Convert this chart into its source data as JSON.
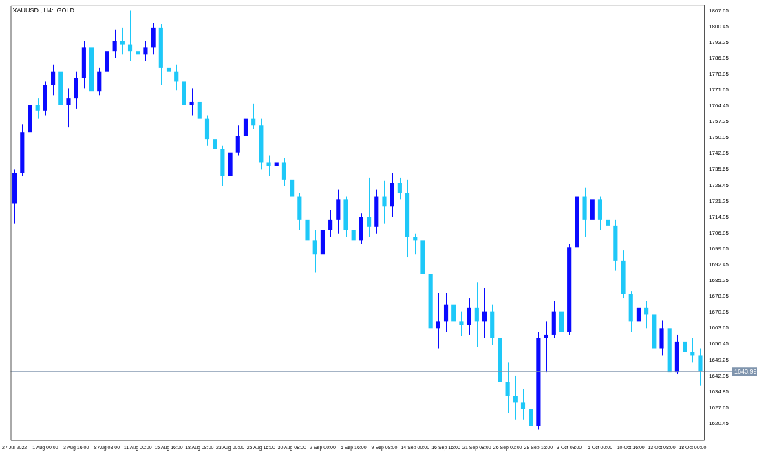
{
  "chart_data": {
    "type": "candlestick",
    "title": "XAUUSD., H4:  GOLD",
    "categories": [
      "27 Jul 2022",
      null,
      null,
      null,
      "1 Aug 00:00",
      null,
      null,
      null,
      "3 Aug 16:00",
      null,
      null,
      null,
      "8 Aug 08:00",
      null,
      null,
      null,
      "11 Aug 00:00",
      null,
      null,
      null,
      "15 Aug 16:00",
      null,
      null,
      null,
      "18 Aug 08:00",
      null,
      null,
      null,
      "23 Aug 00:00",
      null,
      null,
      null,
      "25 Aug 16:00",
      null,
      null,
      null,
      "30 Aug 08:00",
      null,
      null,
      null,
      "2 Sep 00:00",
      null,
      null,
      null,
      "6 Sep 16:00",
      null,
      null,
      null,
      "9 Sep 08:00",
      null,
      null,
      null,
      "14 Sep 00:00",
      null,
      null,
      null,
      "16 Sep 16:00",
      null,
      null,
      null,
      "21 Sep 08:00",
      null,
      null,
      null,
      "26 Sep 00:00",
      null,
      null,
      null,
      "28 Sep 16:00",
      null,
      null,
      null,
      "3 Oct 08:00",
      null,
      null,
      null,
      "6 Oct 00:00",
      null,
      null,
      null,
      "10 Oct 16:00",
      null,
      null,
      null,
      "13 Oct 08:00",
      null,
      null,
      null,
      "18 Oct 00:00",
      null
    ],
    "ohlc": [
      [
        1720.3,
        1735.6,
        1711.2,
        1734.1
      ],
      [
        1734.1,
        1756.2,
        1732.6,
        1752.5
      ],
      [
        1752.5,
        1767.2,
        1751.0,
        1764.8
      ],
      [
        1764.8,
        1767.8,
        1758.6,
        1762.3
      ],
      [
        1762.3,
        1775.5,
        1760.2,
        1774.0
      ],
      [
        1774.0,
        1783.2,
        1769.3,
        1780.1
      ],
      [
        1780.1,
        1787.7,
        1760.2,
        1764.8
      ],
      [
        1764.8,
        1772.4,
        1754.7,
        1767.8
      ],
      [
        1767.8,
        1780.1,
        1763.2,
        1777.0
      ],
      [
        1777.0,
        1793.9,
        1772.4,
        1790.8
      ],
      [
        1790.8,
        1793.0,
        1764.8,
        1770.9
      ],
      [
        1770.9,
        1781.6,
        1769.3,
        1780.1
      ],
      [
        1780.1,
        1790.8,
        1778.6,
        1789.3
      ],
      [
        1789.3,
        1799.1,
        1786.2,
        1793.9
      ],
      [
        1793.9,
        1800.0,
        1787.7,
        1792.3
      ],
      [
        1792.3,
        1807.6,
        1784.7,
        1789.3
      ],
      [
        1789.3,
        1795.4,
        1783.8,
        1787.7
      ],
      [
        1787.7,
        1793.9,
        1784.7,
        1790.8
      ],
      [
        1790.8,
        1802.1,
        1787.7,
        1800.0
      ],
      [
        1800.0,
        1801.5,
        1774.0,
        1781.6
      ],
      [
        1781.6,
        1784.7,
        1774.0,
        1780.1
      ],
      [
        1780.1,
        1783.2,
        1771.5,
        1775.5
      ],
      [
        1775.5,
        1778.6,
        1760.2,
        1764.8
      ],
      [
        1764.8,
        1772.4,
        1760.2,
        1766.3
      ],
      [
        1766.3,
        1767.8,
        1754.0,
        1758.6
      ],
      [
        1758.6,
        1760.2,
        1746.4,
        1749.4
      ],
      [
        1749.4,
        1751.0,
        1735.6,
        1744.8
      ],
      [
        1744.8,
        1746.4,
        1728.0,
        1732.6
      ],
      [
        1732.6,
        1744.8,
        1731.1,
        1743.3
      ],
      [
        1743.3,
        1755.6,
        1741.8,
        1751.0
      ],
      [
        1751.0,
        1763.2,
        1741.8,
        1758.6
      ],
      [
        1758.6,
        1765.4,
        1754.0,
        1755.6
      ],
      [
        1755.6,
        1758.6,
        1735.6,
        1738.7
      ],
      [
        1738.7,
        1741.8,
        1732.6,
        1737.2
      ],
      [
        1737.2,
        1744.8,
        1720.3,
        1738.7
      ],
      [
        1738.7,
        1740.9,
        1728.0,
        1731.1
      ],
      [
        1731.1,
        1732.6,
        1718.8,
        1723.4
      ],
      [
        1723.4,
        1724.9,
        1708.1,
        1712.7
      ],
      [
        1712.7,
        1714.2,
        1700.4,
        1703.5
      ],
      [
        1703.5,
        1708.1,
        1688.8,
        1697.3
      ],
      [
        1697.3,
        1711.2,
        1695.8,
        1708.1
      ],
      [
        1708.1,
        1717.3,
        1705.0,
        1712.7
      ],
      [
        1712.7,
        1726.5,
        1706.5,
        1721.9
      ],
      [
        1721.9,
        1723.4,
        1705.0,
        1708.1
      ],
      [
        1708.1,
        1711.2,
        1691.2,
        1703.5
      ],
      [
        1703.5,
        1715.7,
        1701.9,
        1714.2
      ],
      [
        1714.2,
        1731.7,
        1705.0,
        1709.6
      ],
      [
        1709.6,
        1726.5,
        1706.5,
        1723.4
      ],
      [
        1723.4,
        1730.5,
        1711.2,
        1718.8
      ],
      [
        1718.8,
        1734.1,
        1714.2,
        1729.5
      ],
      [
        1729.5,
        1731.7,
        1721.9,
        1724.9
      ],
      [
        1724.9,
        1731.1,
        1695.8,
        1705.0
      ],
      [
        1705.0,
        1706.5,
        1697.3,
        1703.5
      ],
      [
        1703.5,
        1705.0,
        1685.1,
        1688.2
      ],
      [
        1688.2,
        1689.7,
        1660.6,
        1663.6
      ],
      [
        1663.6,
        1679.6,
        1654.5,
        1666.7
      ],
      [
        1666.7,
        1679.6,
        1662.1,
        1674.4
      ],
      [
        1674.4,
        1677.4,
        1660.6,
        1666.7
      ],
      [
        1666.7,
        1671.3,
        1660.0,
        1665.2
      ],
      [
        1665.2,
        1677.4,
        1660.6,
        1672.8
      ],
      [
        1672.8,
        1684.5,
        1655.1,
        1666.7
      ],
      [
        1666.7,
        1682.0,
        1659.1,
        1671.3
      ],
      [
        1671.3,
        1674.4,
        1656.0,
        1659.1
      ],
      [
        1659.1,
        1660.6,
        1633.6,
        1639.1
      ],
      [
        1639.1,
        1648.3,
        1625.3,
        1633.0
      ],
      [
        1633.0,
        1642.2,
        1622.3,
        1629.9
      ],
      [
        1629.9,
        1636.1,
        1622.3,
        1626.9
      ],
      [
        1626.9,
        1631.5,
        1615.2,
        1619.2
      ],
      [
        1619.2,
        1662.1,
        1617.7,
        1659.1
      ],
      [
        1659.1,
        1666.7,
        1643.7,
        1660.6
      ],
      [
        1660.6,
        1675.9,
        1659.1,
        1671.3
      ],
      [
        1671.3,
        1674.4,
        1660.6,
        1662.1
      ],
      [
        1662.1,
        1701.9,
        1660.6,
        1700.4
      ],
      [
        1700.4,
        1728.6,
        1697.3,
        1723.4
      ],
      [
        1723.4,
        1727.4,
        1705.0,
        1712.7
      ],
      [
        1712.7,
        1724.3,
        1709.6,
        1721.9
      ],
      [
        1721.9,
        1723.4,
        1708.1,
        1712.7
      ],
      [
        1712.7,
        1715.7,
        1706.5,
        1710.2
      ],
      [
        1710.2,
        1712.7,
        1689.7,
        1694.3
      ],
      [
        1694.3,
        1698.9,
        1677.4,
        1679.0
      ],
      [
        1679.0,
        1680.5,
        1662.1,
        1666.7
      ],
      [
        1666.7,
        1680.5,
        1662.1,
        1672.8
      ],
      [
        1672.8,
        1675.9,
        1663.6,
        1669.8
      ],
      [
        1669.8,
        1682.0,
        1642.8,
        1654.5
      ],
      [
        1654.5,
        1667.3,
        1651.4,
        1663.6
      ],
      [
        1663.6,
        1666.7,
        1640.7,
        1643.7
      ],
      [
        1643.7,
        1660.6,
        1642.8,
        1657.5
      ],
      [
        1657.5,
        1660.6,
        1648.3,
        1652.9
      ],
      [
        1652.9,
        1659.1,
        1648.3,
        1651.4
      ],
      [
        1651.4,
        1654.5,
        1637.6,
        1643.99
      ]
    ],
    "colors": [
      "#0a0aff",
      "#0a0aff",
      "#0a0aff",
      "#1ec8f8",
      "#0a0aff",
      "#0a0aff",
      "#1ec8f8",
      "#0a0aff",
      "#0a0aff",
      "#0a0aff",
      "#1ec8f8",
      "#0a0aff",
      "#0a0aff",
      "#0a0aff",
      "#1ec8f8",
      "#1ec8f8",
      "#1ec8f8",
      "#0a0aff",
      "#0a0aff",
      "#1ec8f8",
      "#1ec8f8",
      "#1ec8f8",
      "#1ec8f8",
      "#0a0aff",
      "#1ec8f8",
      "#1ec8f8",
      "#1ec8f8",
      "#1ec8f8",
      "#0a0aff",
      "#0a0aff",
      "#0a0aff",
      "#1ec8f8",
      "#1ec8f8",
      "#1ec8f8",
      "#0a0aff",
      "#1ec8f8",
      "#1ec8f8",
      "#1ec8f8",
      "#1ec8f8",
      "#1ec8f8",
      "#0a0aff",
      "#0a0aff",
      "#0a0aff",
      "#1ec8f8",
      "#1ec8f8",
      "#0a0aff",
      "#1ec8f8",
      "#0a0aff",
      "#1ec8f8",
      "#0a0aff",
      "#1ec8f8",
      "#1ec8f8",
      "#1ec8f8",
      "#1ec8f8",
      "#1ec8f8",
      "#0a0aff",
      "#0a0aff",
      "#1ec8f8",
      "#1ec8f8",
      "#0a0aff",
      "#1ec8f8",
      "#0a0aff",
      "#1ec8f8",
      "#1ec8f8",
      "#1ec8f8",
      "#1ec8f8",
      "#1ec8f8",
      "#1ec8f8",
      "#0a0aff",
      "#0a0aff",
      "#0a0aff",
      "#1ec8f8",
      "#0a0aff",
      "#0a0aff",
      "#1ec8f8",
      "#0a0aff",
      "#1ec8f8",
      "#1ec8f8",
      "#1ec8f8",
      "#1ec8f8",
      "#1ec8f8",
      "#0a0aff",
      "#1ec8f8",
      "#1ec8f8",
      "#0a0aff",
      "#1ec8f8",
      "#0a0aff",
      "#1ec8f8",
      "#1ec8f8",
      "#1ec8f8"
    ],
    "ylim": [
      1613,
      1810
    ],
    "yticks": [
      1620.45,
      1627.65,
      1634.85,
      1642.05,
      1649.25,
      1656.45,
      1663.65,
      1670.85,
      1678.05,
      1685.25,
      1692.45,
      1699.65,
      1706.85,
      1714.05,
      1721.25,
      1728.45,
      1735.65,
      1742.85,
      1750.05,
      1757.25,
      1764.45,
      1771.65,
      1778.85,
      1786.05,
      1793.25,
      1800.45,
      1807.65
    ],
    "ref_lines": [
      {
        "axis": "y",
        "value": 1643.99,
        "label": "1643.99",
        "color": "#7f94ad"
      }
    ]
  }
}
